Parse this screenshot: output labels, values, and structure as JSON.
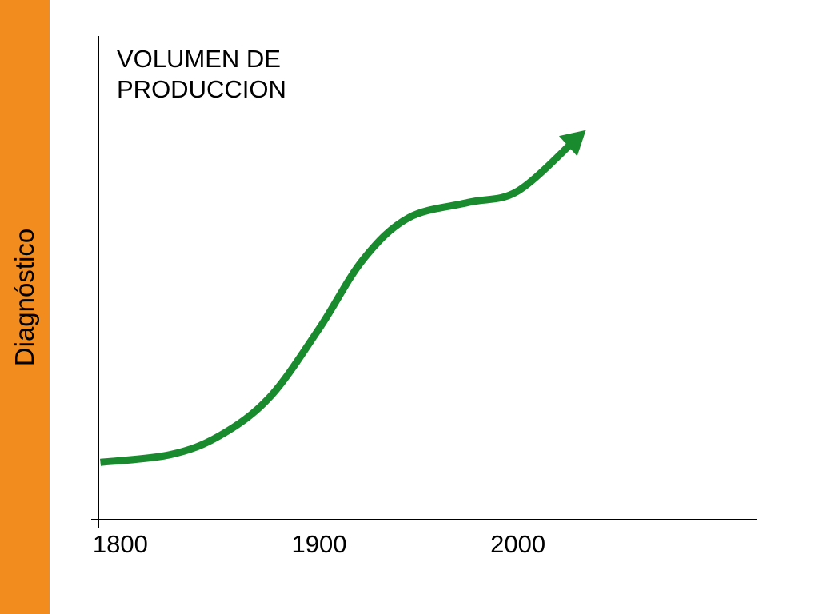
{
  "sidebar": {
    "label": "Diagnóstico",
    "color": "#F28C1E"
  },
  "chart_data": {
    "type": "line",
    "ylabel_lines": [
      "VOLUMEN DE",
      "PRODUCCION"
    ],
    "xlabel": "",
    "x_ticks": [
      1800,
      1900,
      2000
    ],
    "xlim": [
      1789,
      2120
    ],
    "ylim": [
      0,
      100
    ],
    "line_color": "#1A8A2E",
    "arrow_end": true,
    "grid": false,
    "series": [
      {
        "x": [
          1790,
          1825,
          1850,
          1875,
          1900,
          1922,
          1945,
          1975,
          2000,
          2030
        ],
        "values": [
          15,
          17,
          22,
          32,
          50,
          68,
          79,
          83,
          86,
          100
        ]
      }
    ]
  }
}
